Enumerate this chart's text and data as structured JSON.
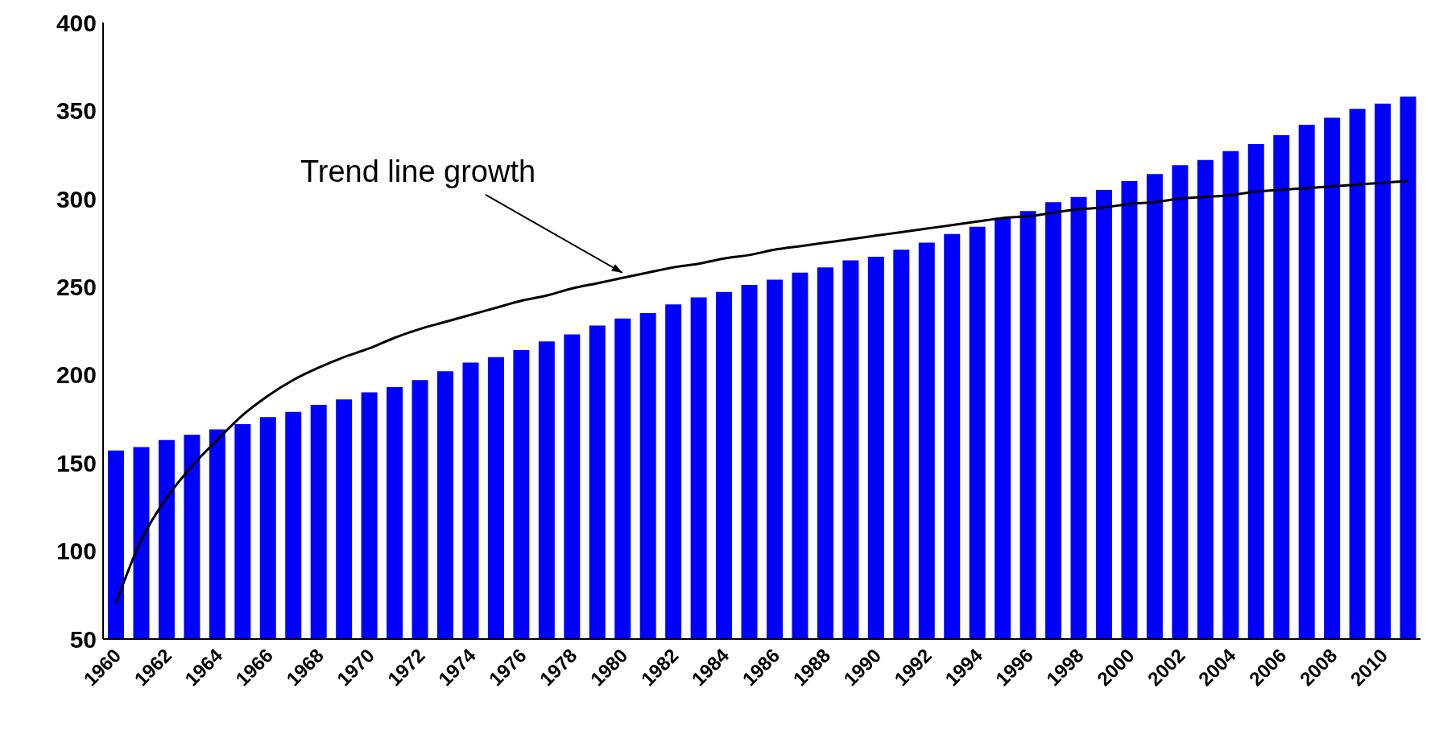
{
  "chart_data": {
    "type": "bar",
    "categories": [
      "1960",
      null,
      "1962",
      null,
      "1964",
      null,
      "1966",
      null,
      "1968",
      null,
      "1970",
      null,
      "1972",
      null,
      "1974",
      null,
      "1976",
      null,
      "1978",
      null,
      "1980",
      null,
      "1982",
      null,
      "1984",
      null,
      "1986",
      null,
      "1988",
      null,
      "1990",
      null,
      "1992",
      null,
      "1994",
      null,
      "1996",
      null,
      "1998",
      null,
      "2000",
      null,
      "2002",
      null,
      "2004",
      null,
      "2006",
      null,
      "2008",
      null,
      "2010",
      null
    ],
    "series": [
      {
        "color": "#0000ff",
        "values": [
          157,
          159,
          163,
          166,
          169,
          172,
          176,
          179,
          183,
          186,
          190,
          193,
          197,
          202,
          207,
          210,
          214,
          219,
          223,
          228,
          232,
          235,
          240,
          244,
          247,
          251,
          254,
          258,
          261,
          265,
          267,
          271,
          275,
          280,
          284,
          289,
          293,
          298,
          301,
          305,
          310,
          314,
          319,
          322,
          327,
          331,
          336,
          342,
          346,
          351,
          354,
          358
        ]
      },
      {
        "type": "line",
        "color": "#000000",
        "marker": "none",
        "values": [
          70,
          106,
          130,
          148,
          163,
          177,
          188,
          197,
          204,
          210,
          215,
          221,
          226,
          230,
          234,
          238,
          242,
          245,
          249,
          252,
          255,
          258,
          261,
          263,
          266,
          268,
          271,
          273,
          275,
          277,
          279,
          281,
          283,
          285,
          287,
          289,
          290,
          292,
          294,
          295,
          297,
          298,
          300,
          301,
          302,
          304,
          305,
          306,
          307,
          308,
          309,
          310
        ]
      }
    ],
    "ylim": [
      50,
      400
    ],
    "yticks": [
      50,
      100,
      150,
      200,
      250,
      300,
      350,
      400
    ],
    "annotations": [
      {
        "text": "Trend line growth",
        "x": "1980",
        "y": 257
      }
    ]
  }
}
